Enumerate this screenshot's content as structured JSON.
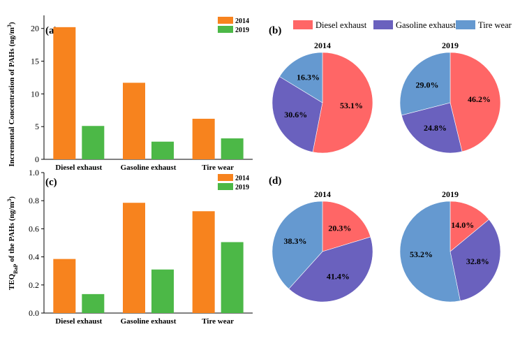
{
  "chart_data": [
    {
      "panel": "(a)",
      "type": "bar",
      "ylabel": "Incremental Concentration of PAHs (ng/m³)",
      "categories": [
        "Diesel exhaust",
        "Gasoline exhaust",
        "Tire wear"
      ],
      "series": [
        {
          "name": "2014",
          "color": "#F7831E",
          "values": [
            20.2,
            11.7,
            6.2
          ]
        },
        {
          "name": "2019",
          "color": "#4CB847",
          "values": [
            5.1,
            2.7,
            3.2
          ]
        }
      ],
      "ylim": [
        0,
        22
      ],
      "yticks": [
        0,
        5,
        10,
        15,
        20
      ]
    },
    {
      "panel": "(c)",
      "type": "bar",
      "ylabel": "TEQBaP of the PAHs (ng/m³)",
      "categories": [
        "Diesel exhaust",
        "Gasoline exhaust",
        "Tire wear"
      ],
      "series": [
        {
          "name": "2014",
          "color": "#F7831E",
          "values": [
            0.385,
            0.785,
            0.725
          ]
        },
        {
          "name": "2019",
          "color": "#4CB847",
          "values": [
            0.135,
            0.31,
            0.505
          ]
        }
      ],
      "ylim": [
        0,
        1.0
      ],
      "yticks": [
        "0.0",
        "0.2",
        "0.4",
        "0.6",
        "0.8",
        "1.0"
      ]
    },
    {
      "panel": "(b)",
      "type": "pie",
      "title": "2014",
      "labels": [
        "Diesel exhaust",
        "Gasoline exhaust",
        "Tire wear"
      ],
      "values": [
        53.1,
        30.6,
        16.3
      ],
      "value_labels": [
        "53.1%",
        "30.6%",
        "16.3%"
      ]
    },
    {
      "type": "pie",
      "title": "2019",
      "labels": [
        "Diesel exhaust",
        "Gasoline exhaust",
        "Tire wear"
      ],
      "values": [
        46.2,
        24.8,
        29.0
      ],
      "value_labels": [
        "46.2%",
        "24.8%",
        "29.0%"
      ]
    },
    {
      "panel": "(d)",
      "type": "pie",
      "title": "2014",
      "labels": [
        "Diesel exhaust",
        "Gasoline exhaust",
        "Tire wear"
      ],
      "values": [
        20.3,
        41.4,
        38.3
      ],
      "value_labels": [
        "20.3%",
        "41.4%",
        "38.3%"
      ]
    },
    {
      "type": "pie",
      "title": "2019",
      "labels": [
        "Diesel exhaust",
        "Gasoline exhaust",
        "Tire wear"
      ],
      "values": [
        14.0,
        32.8,
        53.2
      ],
      "value_labels": [
        "14.0%",
        "32.8%",
        "53.2%"
      ]
    }
  ],
  "pie_legend": [
    {
      "label": "Diesel exhaust",
      "color": "#FF6666"
    },
    {
      "label": "Gasoline exhaust",
      "color": "#6A61BE"
    },
    {
      "label": "Tire wear",
      "color": "#6599D0"
    }
  ]
}
